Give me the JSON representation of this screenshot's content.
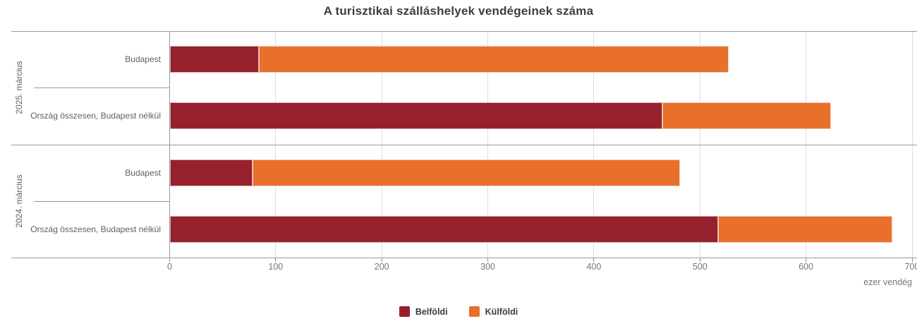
{
  "title": "A turisztikai szálláshelyek vendégeinek száma",
  "chart_data": {
    "type": "bar",
    "orientation": "horizontal",
    "stacked": true,
    "title": "A turisztikai szálláshelyek vendégeinek száma",
    "xlabel": "ezer vendég",
    "xlim": [
      0,
      700
    ],
    "xticks": [
      0,
      100,
      200,
      300,
      400,
      500,
      600,
      700
    ],
    "grid": true,
    "legend_position": "bottom",
    "groups": [
      {
        "label": "2025. március",
        "categories": [
          "Budapest",
          "Ország összesen, Budapest nélkül"
        ],
        "series": [
          {
            "name": "Belföldi",
            "values": [
              84,
              464
            ]
          },
          {
            "name": "Külföldi",
            "values": [
              443,
              159
            ]
          }
        ]
      },
      {
        "label": "2024. március",
        "categories": [
          "Budapest",
          "Ország összesen, Budapest nélkül"
        ],
        "series": [
          {
            "name": "Belföldi",
            "values": [
              78,
              517
            ]
          },
          {
            "name": "Külföldi",
            "values": [
              403,
              164
            ]
          }
        ]
      }
    ],
    "series_colors": {
      "Belföldi": "#96212C",
      "Külföldi": "#E8702B"
    }
  },
  "legend": {
    "items": [
      {
        "label": "Belföldi",
        "color": "#96212C"
      },
      {
        "label": "Külföldi",
        "color": "#E8702B"
      }
    ]
  }
}
